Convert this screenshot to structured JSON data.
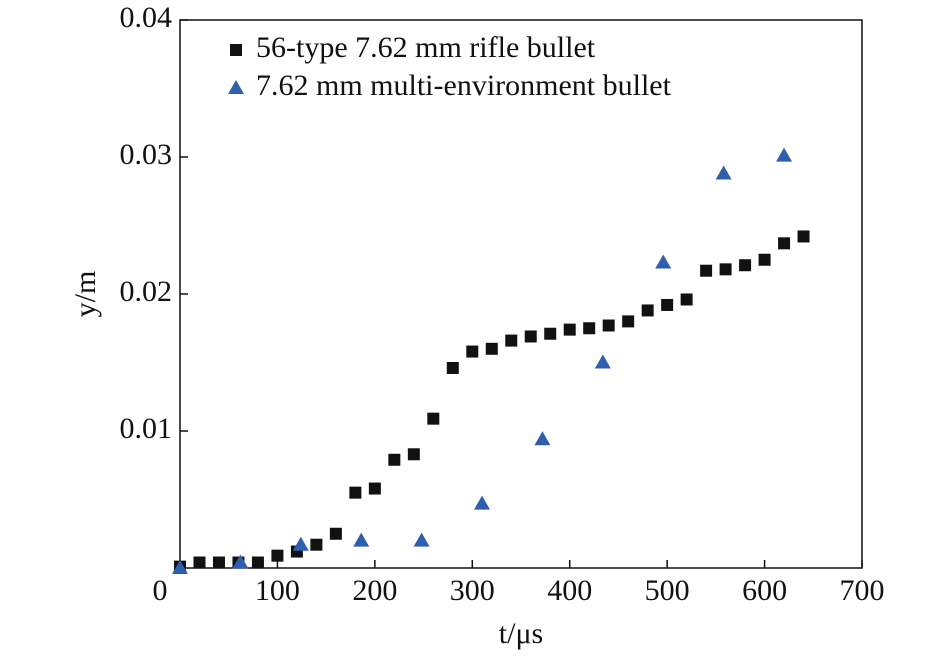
{
  "chart_data": {
    "type": "scatter",
    "xlabel": "t/μs",
    "ylabel": "y/m",
    "xlim": [
      0,
      700
    ],
    "ylim": [
      0,
      0.04
    ],
    "xticks": [
      0,
      100,
      200,
      300,
      400,
      500,
      600,
      700
    ],
    "yticks": [
      0.01,
      0.02,
      0.03,
      0.04
    ],
    "legend": "upper left",
    "series": [
      {
        "name": "56-type 7.62 mm rifle bullet",
        "color": "#111111",
        "marker": "square",
        "x": [
          0,
          20,
          40,
          60,
          80,
          100,
          120,
          140,
          160,
          180,
          200,
          220,
          240,
          260,
          280,
          300,
          320,
          340,
          360,
          380,
          400,
          420,
          440,
          460,
          480,
          500,
          520,
          540,
          560,
          580,
          600,
          620,
          640
        ],
        "values": [
          0.0001,
          0.0004,
          0.0004,
          0.0004,
          0.0004,
          0.0009,
          0.0012,
          0.0017,
          0.0025,
          0.0055,
          0.0058,
          0.0079,
          0.0083,
          0.0109,
          0.0146,
          0.0158,
          0.016,
          0.0166,
          0.0169,
          0.0171,
          0.0174,
          0.0175,
          0.0177,
          0.018,
          0.0188,
          0.0192,
          0.0196,
          0.0217,
          0.0218,
          0.0221,
          0.0225,
          0.0237,
          0.0242
        ]
      },
      {
        "name": "7.62 mm multi-environment bullet",
        "color": "#2e5fae",
        "marker": "triangle",
        "x": [
          0,
          62,
          124,
          186,
          248,
          310,
          372,
          434,
          496,
          558,
          620
        ],
        "values": [
          0,
          0.0004,
          0.0017,
          0.002,
          0.002,
          0.0047,
          0.0094,
          0.015,
          0.0223,
          0.0288,
          0.0301
        ]
      }
    ]
  }
}
